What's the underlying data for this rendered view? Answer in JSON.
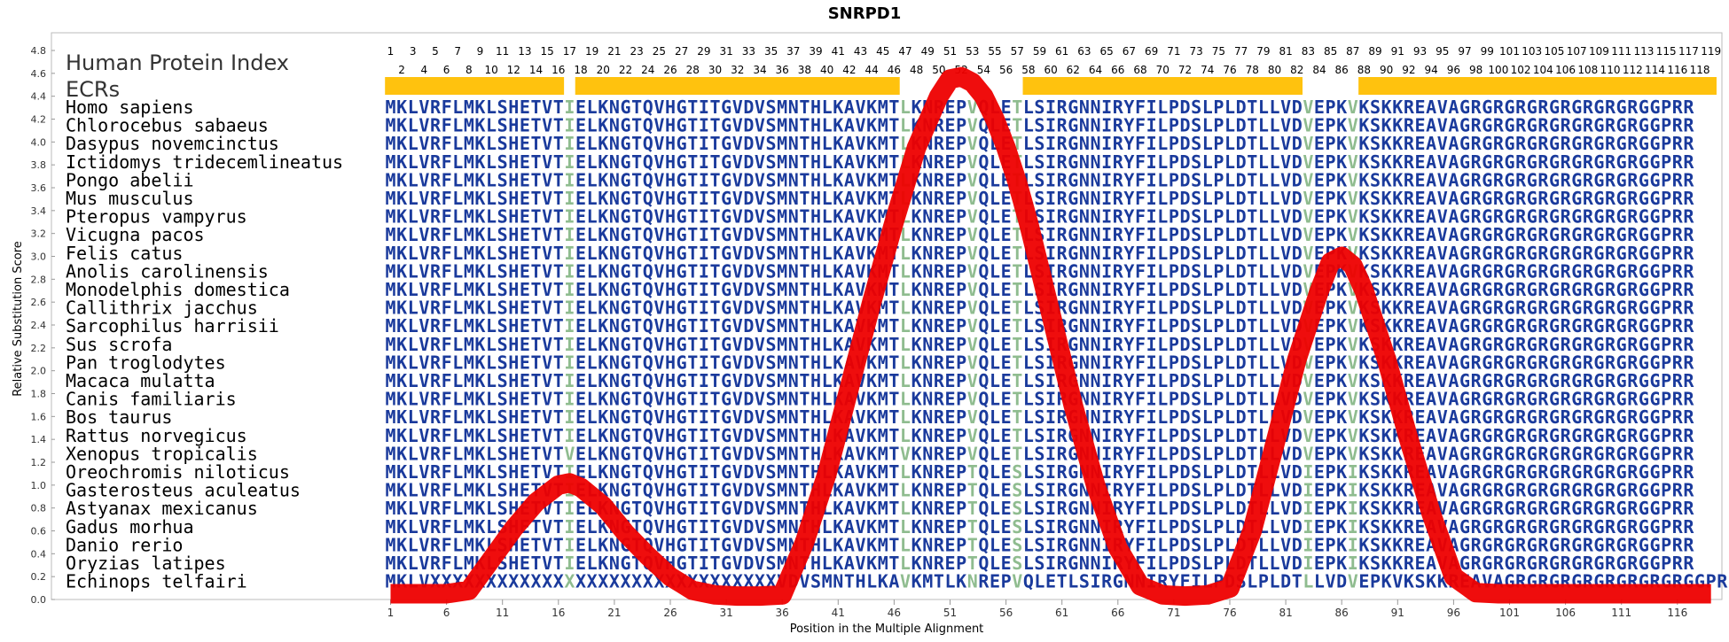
{
  "chart_data": {
    "type": "line",
    "title": "SNRPD1",
    "xlabel": "Position in the Multiple Alignment",
    "ylabel": "Relative Substitution Score",
    "ylim": [
      0.0,
      4.8
    ],
    "xlim": [
      1,
      119
    ],
    "yticks": [
      "0.0",
      "0.2",
      "0.4",
      "0.6",
      "0.8",
      "1.0",
      "1.2",
      "1.4",
      "1.6",
      "1.8",
      "2.0",
      "2.2",
      "2.4",
      "2.6",
      "2.8",
      "3.0",
      "3.2",
      "3.4",
      "3.6",
      "3.8",
      "4.0",
      "4.2",
      "4.4",
      "4.6",
      "4.8"
    ],
    "xticks": [
      "1",
      "6",
      "11",
      "16",
      "21",
      "26",
      "31",
      "36",
      "41",
      "46",
      "51",
      "56",
      "61",
      "66",
      "71",
      "76",
      "81",
      "86",
      "91",
      "96",
      "101",
      "106",
      "111",
      "116"
    ],
    "position_label_top": [
      "1",
      "3",
      "5",
      "7",
      "9",
      "11",
      "13",
      "15",
      "17",
      "19",
      "21",
      "23",
      "25",
      "27",
      "29",
      "31",
      "33",
      "35",
      "37",
      "39",
      "41",
      "43",
      "45",
      "47",
      "49",
      "51",
      "53",
      "55",
      "57",
      "59",
      "61",
      "63",
      "65",
      "67",
      "69",
      "71",
      "73",
      "75",
      "77",
      "79",
      "81",
      "83",
      "85",
      "87",
      "89",
      "91",
      "93",
      "95",
      "97",
      "99",
      "101",
      "103",
      "105",
      "107",
      "109",
      "111",
      "113",
      "115",
      "117",
      "119"
    ],
    "position_label_bottom": [
      "2",
      "4",
      "6",
      "8",
      "10",
      "12",
      "14",
      "16",
      "18",
      "20",
      "22",
      "24",
      "26",
      "28",
      "30",
      "32",
      "34",
      "36",
      "38",
      "40",
      "42",
      "44",
      "46",
      "48",
      "50",
      "52",
      "54",
      "56",
      "58",
      "60",
      "62",
      "64",
      "66",
      "68",
      "70",
      "72",
      "74",
      "76",
      "78",
      "80",
      "82",
      "84",
      "86",
      "88",
      "90",
      "92",
      "94",
      "96",
      "98",
      "100",
      "102",
      "104",
      "106",
      "108",
      "110",
      "112",
      "114",
      "116",
      "118"
    ],
    "heading_index": "Human Protein Index",
    "heading_ecrs": "ECRs",
    "ecr_color": "#ffc20e",
    "ecrs": [
      [
        1,
        16
      ],
      [
        18,
        46
      ],
      [
        58,
        82
      ],
      [
        88,
        119
      ]
    ],
    "series": [
      {
        "color": "#ee0000",
        "x": [
          1,
          6,
          8,
          10,
          12,
          14,
          16,
          17,
          18,
          20,
          22,
          24,
          26,
          28,
          30,
          32,
          34,
          36,
          38,
          40,
          42,
          44,
          46,
          48,
          50,
          51,
          52,
          53,
          54,
          55,
          56,
          57,
          58,
          60,
          62,
          64,
          66,
          68,
          70,
          72,
          74,
          76,
          78,
          80,
          82,
          84,
          85,
          86,
          87,
          88,
          90,
          92,
          94,
          96,
          98,
          100,
          105,
          110,
          115,
          119
        ],
        "values": [
          0.05,
          0.05,
          0.08,
          0.35,
          0.62,
          0.85,
          1.0,
          1.02,
          0.98,
          0.82,
          0.58,
          0.38,
          0.2,
          0.08,
          0.04,
          0.03,
          0.03,
          0.04,
          0.5,
          1.1,
          1.85,
          2.6,
          3.3,
          3.95,
          4.4,
          4.55,
          4.57,
          4.52,
          4.4,
          4.2,
          3.95,
          3.65,
          3.3,
          2.5,
          1.7,
          1.0,
          0.45,
          0.12,
          0.04,
          0.03,
          0.04,
          0.1,
          0.6,
          1.35,
          2.1,
          2.7,
          2.95,
          3.0,
          2.92,
          2.7,
          2.1,
          1.4,
          0.75,
          0.2,
          0.06,
          0.05,
          0.05,
          0.05,
          0.05,
          0.05
        ]
      }
    ],
    "residue_colors": {
      "normal": "#1a3a9c",
      "variable": "#8fbc8f"
    },
    "variable_columns": [
      17,
      47,
      53,
      57,
      83,
      87
    ],
    "alignment": [
      {
        "species": "Homo sapiens",
        "sequence": "MKLVRFLMKLSHETVTIELKNGTQVHGTITGVDVSMNTHLKAVKMTLKNREPVQLETLSIRGNNIRYFILPDSLPLDTLLVDVEPKVKSKKREAVAGRGRGRGRGRGRGRGRGGPRR"
      },
      {
        "species": "Chlorocebus sabaeus",
        "sequence": "MKLVRFLMKLSHETVTIELKNGTQVHGTITGVDVSMNTHLKAVKMTLKNREPVQLETLSIRGNNIRYFILPDSLPLDTLLVDVEPKVKSKKREAVAGRGRGRGRGRGRGRGRGGPRR"
      },
      {
        "species": "Dasypus novemcinctus",
        "sequence": "MKLVRFLMKLSHETVTIELKNGTQVHGTITGVDVSMNTHLKAVKMTLKNREPVQLETLSIRGNNIRYFILPDSLPLDTLLVDVEPKVKSKKREAVAGRGRGRGRGRGRGRGRGGPRR"
      },
      {
        "species": "Ictidomys tridecemlineatus",
        "sequence": "MKLVRFLMKLSHETVTIELKNGTQVHGTITGVDVSMNTHLKAVKMTLKNREPVQLETLSIRGNNIRYFILPDSLPLDTLLVDVEPKVKSKKREAVAGRGRGRGRGRGRGRGRGGPRR"
      },
      {
        "species": "Pongo abelii",
        "sequence": "MKLVRFLMKLSHETVTIELKNGTQVHGTITGVDVSMNTHLKAVKMTLKNREPVQLETLSIRGNNIRYFILPDSLPLDTLLVDVEPKVKSKKREAVAGRGRGRGRGRGRGRGRGGPRR"
      },
      {
        "species": "Mus musculus",
        "sequence": "MKLVRFLMKLSHETVTIELKNGTQVHGTITGVDVSMNTHLKAVKMTLKNREPVQLETLSIRGNNIRYFILPDSLPLDTLLVDVEPKVKSKKREAVAGRGRGRGRGRGRGRGRGGPRR"
      },
      {
        "species": "Pteropus vampyrus",
        "sequence": "MKLVRFLMKLSHETVTIELKNGTQVHGTITGVDVSMNTHLKAVKMTLKNREPVQLETLSIRGNNIRYFILPDSLPLDTLLVDVEPKVKSKKREAVAGRGRGRGRGRGRGRGRGGPRR"
      },
      {
        "species": "Vicugna pacos",
        "sequence": "MKLVRFLMKLSHETVTIELKNGTQVHGTITGVDVSMNTHLKAVKMTLKNREPVQLETLSIRGNNIRYFILPDSLPLDTLLVDVEPKVKSKKREAVAGRGRGRGRGRGRGRGRGGPRR"
      },
      {
        "species": "Felis catus",
        "sequence": "MKLVRFLMKLSHETVTIELKNGTQVHGTITGVDVSMNTHLKAVKMTLKNREPVQLETLSIRGNNIRYFILPDSLPLDTLLVDVEPKVKSKKREAVAGRGRGRGRGRGRGRGRGGPRR"
      },
      {
        "species": "Anolis carolinensis",
        "sequence": "MKLVRFLMKLSHETVTIELKNGTQVHGTITGVDVSMNTHLKAVKMTLKNREPVQLETLSIRGNNIRYFILPDSLPLDTLLVDVEPKVKSKKREAVAGRGRGRGRGRGRGRGRGGPRR"
      },
      {
        "species": "Monodelphis domestica",
        "sequence": "MKLVRFLMKLSHETVTIELKNGTQVHGTITGVDVSMNTHLKAVKMTLKNREPVQLETLSIRGNNIRYFILPDSLPLDTLLVDVEPKVKSKKREAVAGRGRGRGRGRGRGRGRGGPRR"
      },
      {
        "species": "Callithrix jacchus",
        "sequence": "MKLVRFLMKLSHETVTIELKNGTQVHGTITGVDVSMNTHLKAVKMTLKNREPVQLETLSIRGNNIRYFILPDSLPLDTLLVDVEPKVKSKKREAVAGRGRGRGRGRGRGRGRGGPRR"
      },
      {
        "species": "Sarcophilus harrisii",
        "sequence": "MKLVRFLMKLSHETVTIELKNGTQVHGTITGVDVSMNTHLKAVKMTLKNREPVQLETLSIRGNNIRYFILPDSLPLDTLLVDVEPKVKSKKREAVAGRGRGRGRGRGRGRGRGGPRR"
      },
      {
        "species": "Sus scrofa",
        "sequence": "MKLVRFLMKLSHETVTIELKNGTQVHGTITGVDVSMNTHLKAVKMTLKNREPVQLETLSIRGNNIRYFILPDSLPLDTLLVDVEPKVKSKKREAVAGRGRGRGRGRGRGRGRGGPRR"
      },
      {
        "species": "Pan troglodytes",
        "sequence": "MKLVRFLMKLSHETVTIELKNGTQVHGTITGVDVSMNTHLKAVKMTLKNREPVQLETLSIRGNNIRYFILPDSLPLDTLLVDVEPKVKSKKREAVAGRGRGRGRGRGRGRGRGGPRR"
      },
      {
        "species": "Macaca mulatta",
        "sequence": "MKLVRFLMKLSHETVTIELKNGTQVHGTITGVDVSMNTHLKAVKMTLKNREPVQLETLSIRGNNIRYFILPDSLPLDTLLVDVEPKVKSKKREAVAGRGRGRGRGRGRGRGRGGPRR"
      },
      {
        "species": "Canis familiaris",
        "sequence": "MKLVRFLMKLSHETVTIELKNGTQVHGTITGVDVSMNTHLKAVKMTLKNREPVQLETLSIRGNNIRYFILPDSLPLDTLLVDVEPKVKSKKREAVAGRGRGRGRGRGRGRGRGGPRR"
      },
      {
        "species": "Bos taurus",
        "sequence": "MKLVRFLMKLSHETVTIELKNGTQVHGTITGVDVSMNTHLKAVKMTLKNREPVQLETLSIRGNNIRYFILPDSLPLDTLLVDVEPKVKSKKREAVAGRGRGRGRGRGRGRGRGGPRR"
      },
      {
        "species": "Rattus norvegicus",
        "sequence": "MKLVRFLMKLSHETVTIELKNGTQVHGTITGVDVSMNTHLKAVKMTLKNREPVQLETLSIRGNNIRYFILPDSLPLDTLLVDVEPKVKSKKREAVAGRGRGRGRGRGRGRGRGGPRR"
      },
      {
        "species": "Xenopus tropicalis",
        "sequence": "MKLVRFLMKLSHETVTVELKNGTQVHGTITGVDVSMNTHLKAVKMTVKNREPVQLETLSIRGNNIRYFILPDSLPLDTLLVDVEPKVKSKKREAVAGRGRGRGRGRGRGRGRGGPRR"
      },
      {
        "species": "Oreochromis niloticus",
        "sequence": "MKLVRFLMKLSHETVTIELKNGTQVHGTITGVDVSMNTHLKAVKMTLKNREPTQLESLSIRGNNIRYFILPDSLPLDTLLVDIEPKIKSKKREAVAGRGRGRGRGRGRGRGRGGPRR"
      },
      {
        "species": "Gasterosteus aculeatus",
        "sequence": "MKLVRFLMKLSHETVTIELKNGTQVHGTITGVDVSMNTHLKAVKMTLKNREPTQLESLSIRGNNIRYFILPDSLPLDTLLVDIEPKIKSKKREAVAGRGRGRGRGRGRGRGRGGPRR"
      },
      {
        "species": "Astyanax mexicanus",
        "sequence": "MKLVRFLMKLSHETVTIELKNGTQVHGTITGVDVSMNTHLKAVKMTLKNREPTQLESLSIRGNNIRYFILPDSLPLDTLLVDIEPKIKSKKREAVAGRGRGRGRGRGRGRGRGGPRR"
      },
      {
        "species": "Gadus morhua",
        "sequence": "MKLVRFLMKLSHETVTIELKNGTQVHGTITGVDVSMNTHLKAVKMTLKNREPTQLESLSIRGNNIRYFILPDSLPLDTLLVDIEPKIKSKKREAVAGRGRGRGRGRGRGRGRGGPRR"
      },
      {
        "species": "Danio rerio",
        "sequence": "MKLVRFLMKLSHETVTIELKNGTQVHGTITGVDVSMNTHLKAVKMTLKNREPTQLESLSIRGNNIRYFILPDSLPLDTLLVDIEPKIKSKKREAVAGRGRGRGRGRGRGRGRGGPRR"
      },
      {
        "species": "Oryzias latipes",
        "sequence": "MKLVRFLMKLSHETVTIELKNGTQVHGTITGVDVSMNTHLKAVKMTLKNREPTQLESLSIRGNNIRYFILPDSLPLDTLLVDIEPKIKSKKREAVAGRGRGRGRGRGRGRGRGGPRR"
      },
      {
        "species": "Echinops telfairi",
        "sequence": "MKLVXXXXXXXXXXXXXXXXXXXXXXXXXXXXXXXVDVSMNTHLKAVKMTLKNREPVQLETLSIRGNNIRYFILPDSLPLDTLLVDVEPKVKSKKREAVAGRGRGRGRGRGRGRGRGGPRR"
      }
    ]
  }
}
